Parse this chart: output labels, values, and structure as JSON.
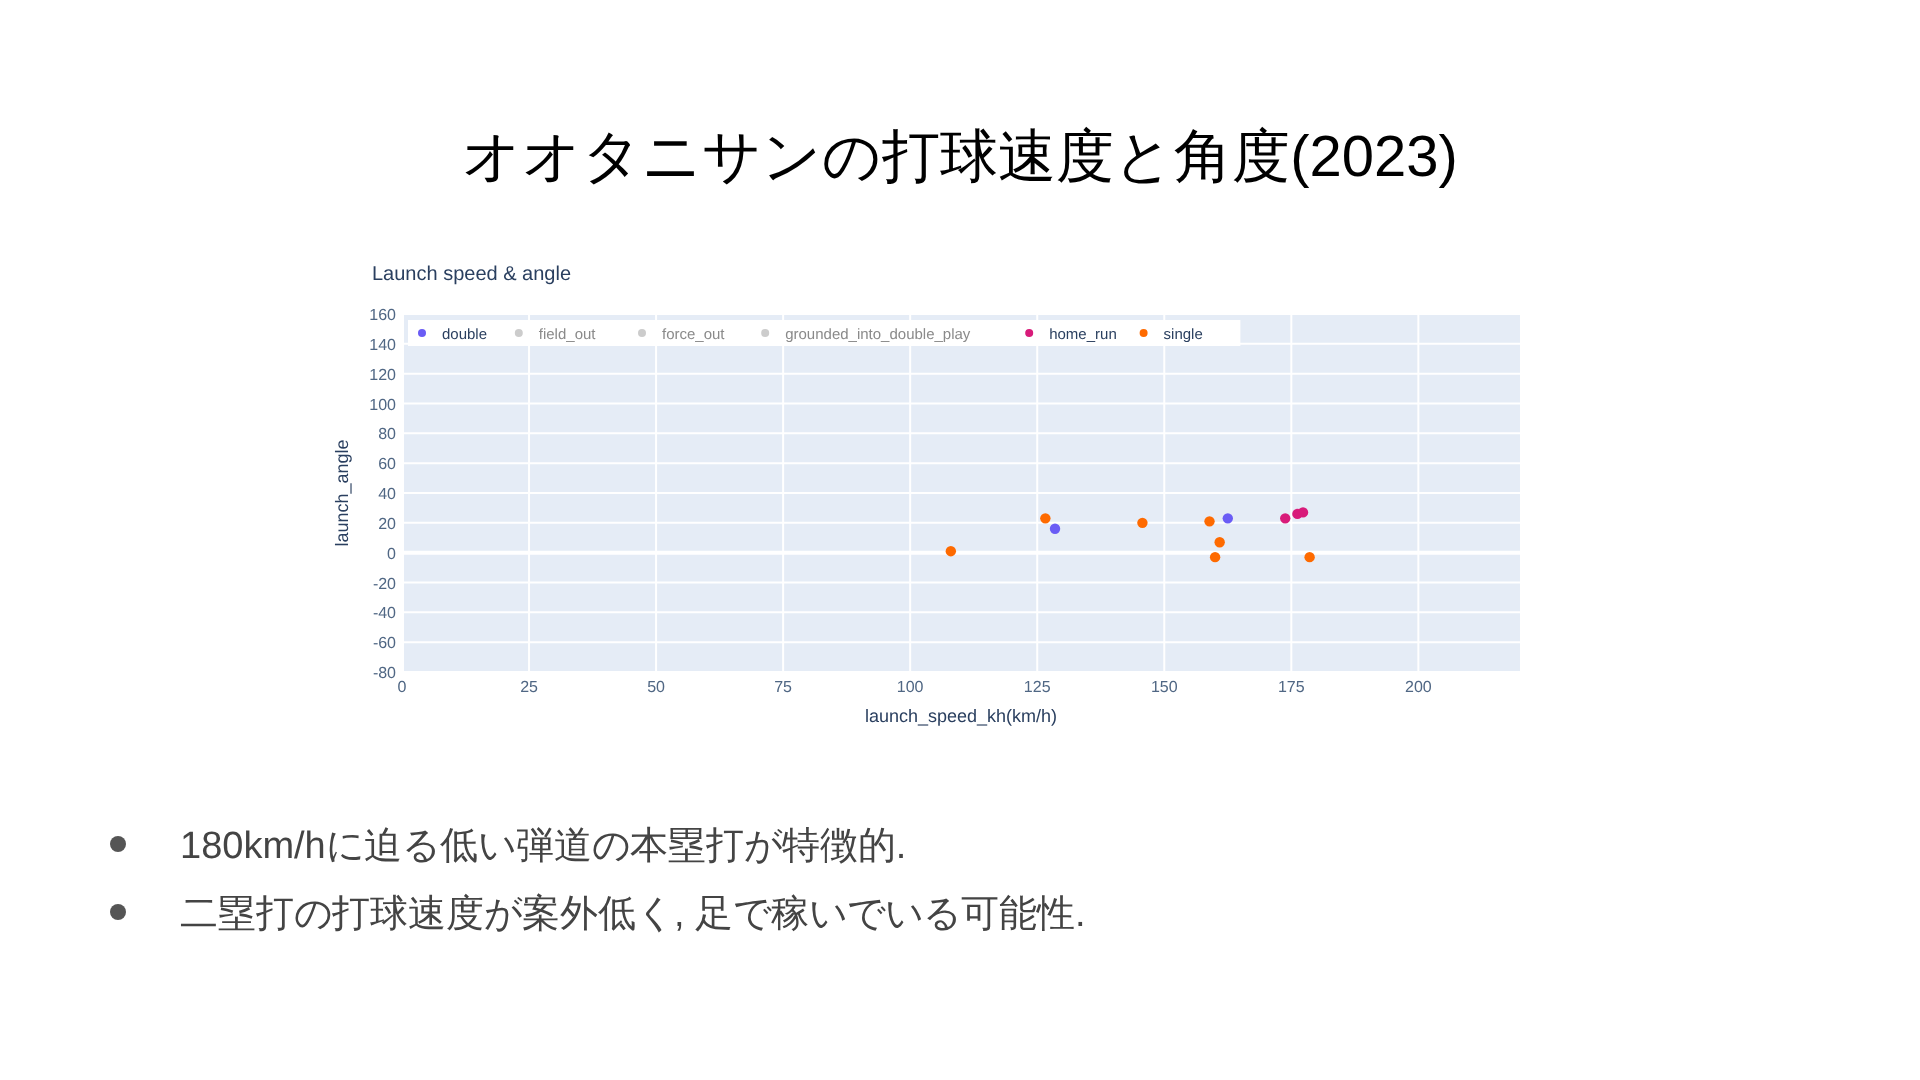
{
  "chart_data": {
    "type": "scatter",
    "title": "オオタニサンの打球速度と角度(2023)",
    "subtitle": "Launch speed & angle",
    "xlabel": "launch_speed_kh(km/h)",
    "ylabel": "launch_angle",
    "xlim": [
      0,
      220
    ],
    "xticks": [
      0,
      25,
      50,
      75,
      100,
      125,
      150,
      175,
      200
    ],
    "ylim": [
      -80,
      160
    ],
    "yticks": [
      -80,
      -60,
      -40,
      -20,
      0,
      20,
      40,
      60,
      80,
      100,
      120,
      140,
      160
    ],
    "grid": true,
    "legend": "top left",
    "marker": "circle",
    "series": [
      {
        "name": "double",
        "color": "#6a5cf5",
        "x": [
          128.5,
          162.5
        ],
        "values": [
          16,
          23
        ]
      },
      {
        "name": "field_out",
        "color": "#cccccc"
      },
      {
        "name": "force_out",
        "color": "#cccccc"
      },
      {
        "name": "grounded_into_double_play",
        "color": "#cccccc"
      },
      {
        "name": "home_run",
        "color": "#d81b7a",
        "x": [
          173.8,
          176.2,
          177.3
        ],
        "values": [
          23,
          26,
          27
        ]
      },
      {
        "name": "single",
        "color": "#fe6a00",
        "x": [
          108,
          126.6,
          145.7,
          158.9,
          160.9,
          160,
          178.6
        ],
        "values": [
          1,
          23,
          20,
          21,
          7,
          -3,
          -3
        ]
      }
    ],
    "annotations": [
      "180km/hに迫る低い弾道の本塁打が特徴的.",
      "二塁打の打球速度が案外低く, 足で稼いでいる可能性."
    ]
  }
}
